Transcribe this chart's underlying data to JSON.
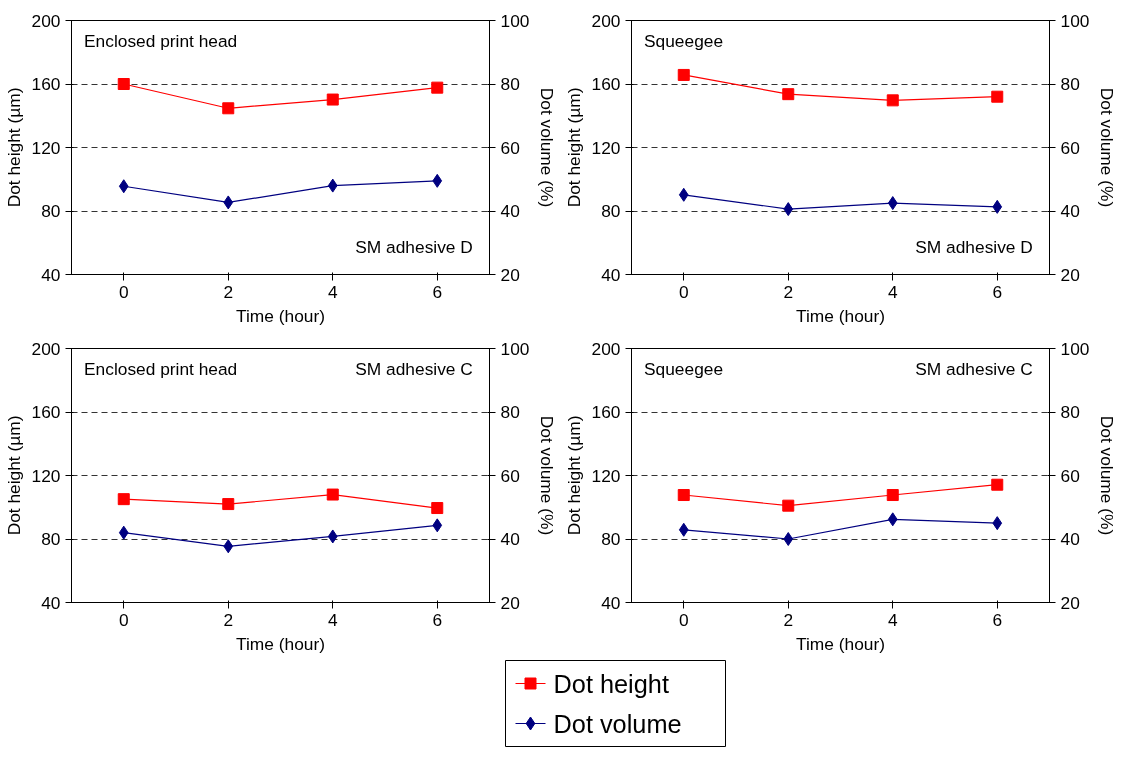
{
  "chart_data": [
    {
      "type": "line",
      "x": [
        0,
        2,
        4,
        6
      ],
      "xlim": [
        -1,
        7
      ],
      "xticks": [
        0,
        2,
        4,
        6
      ],
      "xlabel": "Time (hour)",
      "ylabel": "Dot height (µm)",
      "y2label": "Dot volume (%)",
      "ylim": [
        40,
        200
      ],
      "yticks": [
        40,
        80,
        120,
        160,
        200
      ],
      "y2lim": [
        20,
        100
      ],
      "y2ticks": [
        20,
        40,
        60,
        80,
        100
      ],
      "grid": "y",
      "legend": "bottom",
      "annotations": [
        "Enclosed print head",
        "SM adhesive D"
      ],
      "series": [
        {
          "name": "Dot height",
          "color": "#ff0000",
          "marker": "square",
          "values": [
            160,
            144.7,
            150.2,
            157.7
          ]
        },
        {
          "name": "Dot volume",
          "color": "#000080",
          "marker": "diamond",
          "axis": "y2",
          "values": [
            47.8,
            42.7,
            48,
            49.5
          ]
        }
      ]
    },
    {
      "type": "line",
      "x": [
        0,
        2,
        4,
        6
      ],
      "xlim": [
        -1,
        7
      ],
      "xticks": [
        0,
        2,
        4,
        6
      ],
      "xlabel": "Time (hour)",
      "ylabel": "Dot height (µm)",
      "y2label": "Dot volume (%)",
      "ylim": [
        40,
        200
      ],
      "yticks": [
        40,
        80,
        120,
        160,
        200
      ],
      "y2lim": [
        20,
        100
      ],
      "y2ticks": [
        20,
        40,
        60,
        80,
        100
      ],
      "grid": "y",
      "annotations": [
        "Squeegee",
        "SM adhesive D"
      ],
      "series": [
        {
          "color": "#ff0000",
          "marker": "square",
          "values": [
            165.7,
            153.6,
            149.7,
            152
          ]
        },
        {
          "color": "#000080",
          "marker": "diamond",
          "axis": "y2",
          "values": [
            45.1,
            40.6,
            42.5,
            41.3
          ]
        }
      ]
    },
    {
      "type": "line",
      "x": [
        0,
        2,
        4,
        6
      ],
      "xlim": [
        -1,
        7
      ],
      "xticks": [
        0,
        2,
        4,
        6
      ],
      "xlabel": "Time (hour)",
      "ylabel": "Dot height (µm)",
      "y2label": "Dot volume (%)",
      "ylim": [
        40,
        200
      ],
      "yticks": [
        40,
        80,
        120,
        160,
        200
      ],
      "y2lim": [
        20,
        100
      ],
      "y2ticks": [
        20,
        40,
        60,
        80,
        100
      ],
      "grid": "y",
      "annotations": [
        "Enclosed print head",
        "SM adhesive C"
      ],
      "series": [
        {
          "color": "#ff0000",
          "marker": "square",
          "values": [
            105.1,
            102,
            108,
            99.5
          ]
        },
        {
          "color": "#000080",
          "marker": "diamond",
          "axis": "y2",
          "values": [
            42,
            37.7,
            40.8,
            44.3
          ]
        }
      ]
    },
    {
      "type": "line",
      "x": [
        0,
        2,
        4,
        6
      ],
      "xlim": [
        -1,
        7
      ],
      "xticks": [
        0,
        2,
        4,
        6
      ],
      "xlabel": "Time (hour)",
      "ylabel": "Dot height (µm)",
      "y2label": "Dot volume (%)",
      "ylim": [
        40,
        200
      ],
      "yticks": [
        40,
        80,
        120,
        160,
        200
      ],
      "y2lim": [
        20,
        100
      ],
      "y2ticks": [
        20,
        40,
        60,
        80,
        100
      ],
      "grid": "y",
      "annotations": [
        "Squeegee",
        "SM adhesive C"
      ],
      "series": [
        {
          "color": "#ff0000",
          "marker": "square",
          "values": [
            107.7,
            101,
            107.7,
            114.2
          ]
        },
        {
          "color": "#000080",
          "marker": "diamond",
          "axis": "y2",
          "values": [
            42.9,
            40,
            46.2,
            45
          ]
        }
      ]
    }
  ]
}
